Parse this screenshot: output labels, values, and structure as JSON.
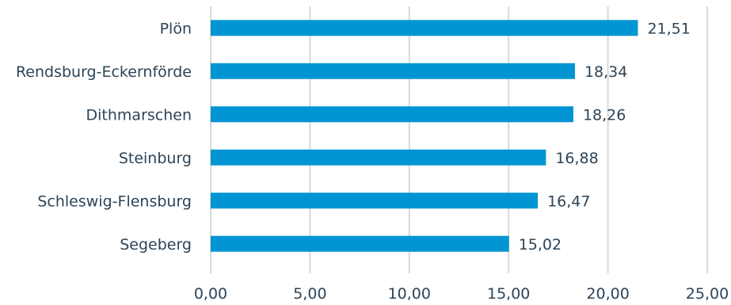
{
  "chart_data": {
    "type": "bar",
    "orientation": "horizontal",
    "categories": [
      "Plön",
      "Rendsburg-Eckernförde",
      "Dithmarschen",
      "Steinburg",
      "Schleswig-Flensburg",
      "Segeberg"
    ],
    "values": [
      21.51,
      18.34,
      18.26,
      16.88,
      16.47,
      15.02
    ],
    "value_labels": [
      "21,51",
      "18,34",
      "18,26",
      "16,88",
      "16,47",
      "15,02"
    ],
    "xlim": [
      0,
      25
    ],
    "x_ticks": [
      0,
      5,
      10,
      15,
      20,
      25
    ],
    "x_tick_labels": [
      "0,00",
      "5,00",
      "10,00",
      "15,00",
      "20,00",
      "25,00"
    ],
    "grid": "vertical",
    "bar_color": "#0095d2"
  }
}
